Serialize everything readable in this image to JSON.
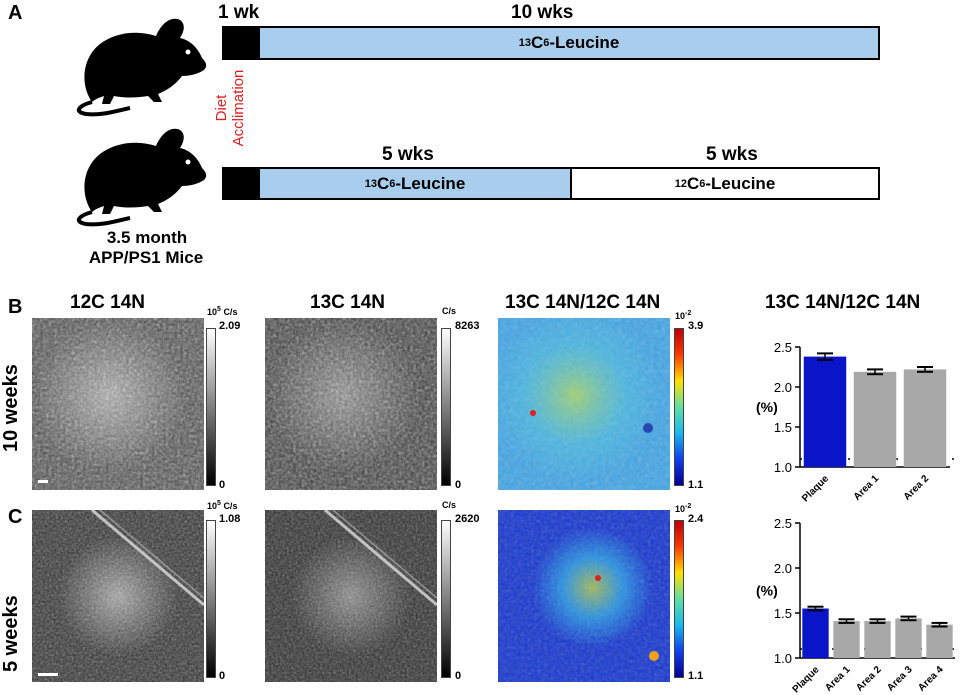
{
  "panelA": {
    "letter": "A",
    "mice_label_line1": "3.5 month",
    "mice_label_line2": "APP/PS1 Mice",
    "acclimation_line1": "Diet",
    "acclimation_line2": "Acclimation",
    "top": {
      "d1": "1 wk",
      "d2": "10 wks",
      "bar_text_sup": "13",
      "bar_text_c": "C",
      "bar_text_sub": "6",
      "bar_text_rest": "-Leucine"
    },
    "bottom": {
      "d1": "5 wks",
      "d2": "5 wks",
      "bar1_sup": "13",
      "bar1_c": "C",
      "bar1_sub": "6",
      "bar1_rest": "-Leucine",
      "bar2_sup": "12",
      "bar2_c": "C",
      "bar2_sub": "6",
      "bar2_rest": "-Leucine"
    }
  },
  "panelB": {
    "letter": "B",
    "row_label": "10 weeks",
    "col1_title": "12C 14N",
    "col2_title": "13C 14N",
    "col3_title": "13C 14N/12C 14N",
    "col4_title": "13C 14N/12C 14N",
    "cb1": {
      "unit_base": "10",
      "unit_exp": "5",
      "unit": "C/s",
      "max": "2.09",
      "min": "0"
    },
    "cb2": {
      "unit": "C/s",
      "max": "8263",
      "min": "0"
    },
    "cb3": {
      "unit_base": "10",
      "unit_exp": "-2",
      "max": "3.9",
      "min": "1.1"
    }
  },
  "panelC": {
    "letter": "C",
    "row_label": "5 weeks",
    "cb1": {
      "unit_base": "10",
      "unit_exp": "5",
      "unit": "C/s",
      "max": "1.08",
      "min": "0"
    },
    "cb2": {
      "unit": "C/s",
      "max": "2620",
      "min": "0"
    },
    "cb3": {
      "unit_base": "10",
      "unit_exp": "-2",
      "max": "2.4",
      "min": "1.1"
    }
  },
  "colors": {
    "plaque": "#0a14c8",
    "area": "#a8a8a8",
    "timeline_blue": "#a9cdec",
    "acclimation": "#e02020"
  },
  "chart_data": [
    {
      "type": "bar",
      "categories": [
        "Plaque",
        "Area 1",
        "Area 2"
      ],
      "values": [
        2.38,
        2.19,
        2.22
      ],
      "errors": [
        0.04,
        0.03,
        0.03
      ],
      "ylabel": "(%)",
      "ylim": [
        1.0,
        2.5
      ],
      "yticks": [
        "1.0",
        "1.5",
        "2.0",
        "2.5"
      ],
      "baseline": 1.1
    },
    {
      "type": "bar",
      "categories": [
        "Plaque",
        "Area 1",
        "Area 2",
        "Area 3",
        "Area 4"
      ],
      "values": [
        1.55,
        1.41,
        1.41,
        1.44,
        1.37
      ],
      "errors": [
        0.02,
        0.02,
        0.02,
        0.02,
        0.02
      ],
      "ylabel": "(%)",
      "ylim": [
        1.0,
        2.5
      ],
      "yticks": [
        "1.0",
        "1.5",
        "2.0",
        "2.5"
      ],
      "baseline": 1.1
    }
  ]
}
